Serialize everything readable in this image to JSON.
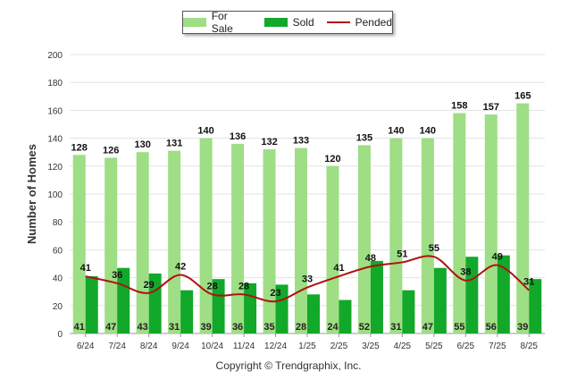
{
  "legend": {
    "items": [
      {
        "label": "For Sale",
        "color": "#9ede84",
        "kind": "bar"
      },
      {
        "label": "Sold",
        "color": "#12a82a",
        "kind": "bar"
      },
      {
        "label": "Pended",
        "color": "#b01010",
        "kind": "line"
      }
    ]
  },
  "copyright": "Copyright © Trendgraphix, Inc.",
  "chart_data": {
    "type": "bar",
    "ylabel": "Number of Homes",
    "xlabel": "",
    "ylim": [
      0,
      200
    ],
    "yticks": [
      0,
      20,
      40,
      60,
      80,
      100,
      120,
      140,
      160,
      180,
      200
    ],
    "grid": true,
    "legend_position": "top",
    "categories": [
      "6/24",
      "7/24",
      "8/24",
      "9/24",
      "10/24",
      "11/24",
      "12/24",
      "1/25",
      "2/25",
      "3/25",
      "4/25",
      "5/25",
      "6/25",
      "7/25",
      "8/25"
    ],
    "series": [
      {
        "name": "For Sale",
        "type": "bar",
        "color": "#9ede84",
        "values": [
          128,
          126,
          130,
          131,
          140,
          136,
          132,
          133,
          120,
          135,
          140,
          140,
          158,
          157,
          165
        ]
      },
      {
        "name": "Sold",
        "type": "bar",
        "color": "#12a82a",
        "values": [
          41,
          47,
          43,
          31,
          39,
          36,
          35,
          28,
          24,
          52,
          31,
          47,
          55,
          56,
          39
        ]
      },
      {
        "name": "Pended",
        "type": "line",
        "color": "#b01010",
        "values": [
          41,
          36,
          29,
          42,
          28,
          28,
          23,
          33,
          41,
          48,
          51,
          55,
          38,
          49,
          31
        ]
      }
    ]
  }
}
